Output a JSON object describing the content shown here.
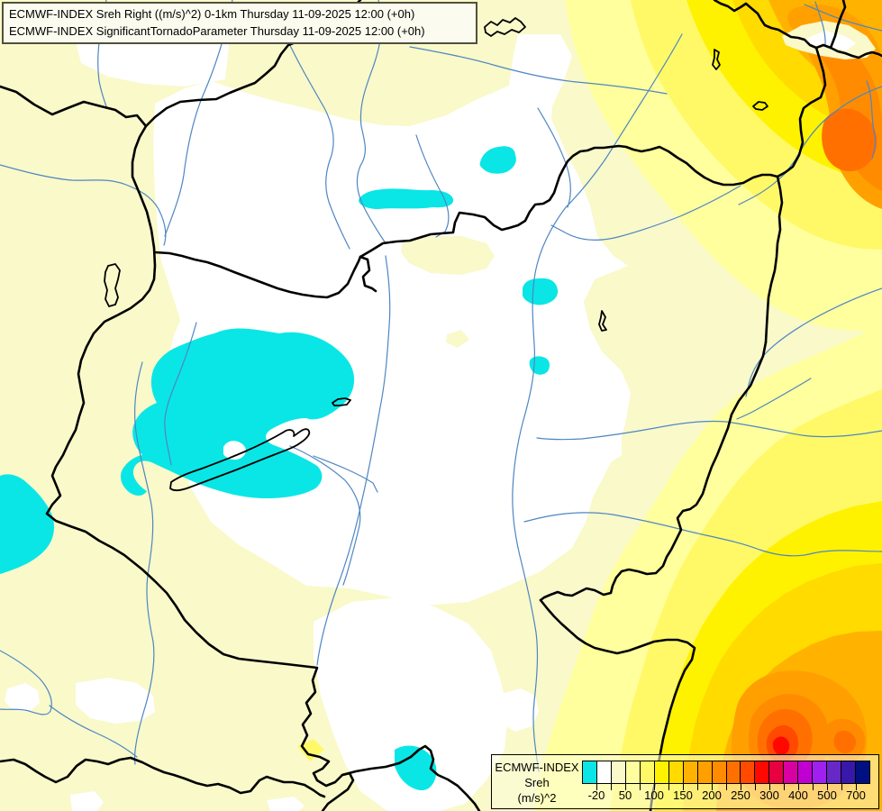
{
  "title_box": {
    "line1": "ECMWF-INDEX Sreh Right ((m/s)^2) 0-1km Thursday 11-09-2025 12:00 (+0h)",
    "line2": "ECMWF-INDEX SignificantTornadoParameter Thursday 11-09-2025 12:00 (+0h)"
  },
  "legend": {
    "label_line1": "ECMWF-INDEX",
    "label_line2": "Sreh",
    "label_line3": "(m/s)^2",
    "colors": [
      "#0AE6E6",
      "#FFFFFF",
      "#F9F9CA",
      "#FFFF9E",
      "#FFF968",
      "#FFF200",
      "#FFDB00",
      "#FFB300",
      "#FFA000",
      "#FF8C00",
      "#FF7000",
      "#FF4A00",
      "#FF0800",
      "#E80040",
      "#D800A0",
      "#C000D0",
      "#A020F0",
      "#6828C8",
      "#3818A8",
      "#001080"
    ],
    "tick_labels": [
      "-20",
      "50",
      "100",
      "150",
      "200",
      "250",
      "300",
      "400",
      "500",
      "700"
    ]
  },
  "map": {
    "region": "Carpathian Basin (Hungary and surroundings)",
    "field": "Storm-relative helicity / significant tornado parameter filled contours",
    "colors": {
      "base_0_50": "#F9F9CA",
      "white_-20_0": "#FFFFFF",
      "cyan_below_-20": "#0AE6E6",
      "river": "#4E86C2",
      "border": "#000000",
      "hot_max_northeast": "#FF7000",
      "hot_max_southeast": "#FF0800"
    }
  }
}
